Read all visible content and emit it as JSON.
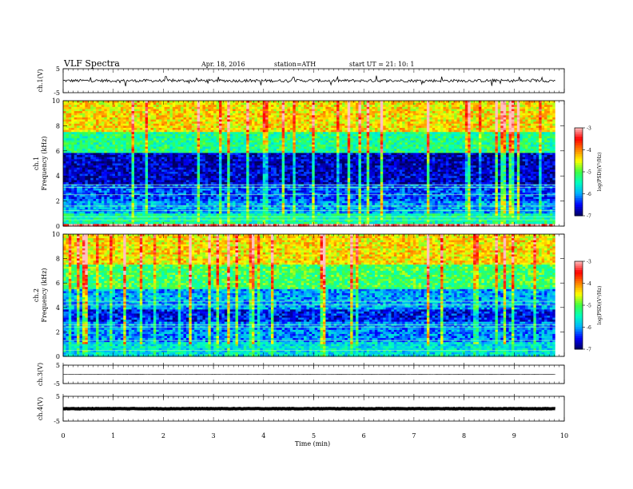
{
  "header": {
    "title": "VLF Spectra",
    "date": "Apr. 18, 2016",
    "station": "station=ATH",
    "start_time": "start  UT  =   21: 10: 1"
  },
  "chart_data": [
    {
      "type": "line",
      "id": "ch1",
      "ylabel": "ch.1(V)",
      "ylim": [
        -5,
        5
      ],
      "ytick_labels": [
        "5",
        "-5"
      ],
      "xlim": [
        0,
        10
      ],
      "baseline": 0,
      "noise_range": [
        -0.6,
        0.6
      ],
      "spikes": [
        {
          "t": 0.55,
          "v": 2.0
        },
        {
          "t": 1.25,
          "v": -2.3
        },
        {
          "t": 2.05,
          "v": 1.8
        },
        {
          "t": 3.1,
          "v": 1.6
        },
        {
          "t": 3.95,
          "v": -1.9
        },
        {
          "t": 4.6,
          "v": 1.5
        },
        {
          "t": 5.35,
          "v": -1.7
        },
        {
          "t": 6.25,
          "v": 2.1
        },
        {
          "t": 7.55,
          "v": 1.7
        },
        {
          "t": 8.55,
          "v": -2.2
        },
        {
          "t": 9.1,
          "v": 1.6
        },
        {
          "t": 9.55,
          "v": 1.4
        }
      ],
      "color": "#000000"
    },
    {
      "type": "heatmap",
      "id": "ch1-spectrogram",
      "ylabel": "ch.1\nFrequency  (kHz)",
      "ylim": [
        0,
        10
      ],
      "ytick_labels": [
        "10",
        "8",
        "6",
        "4",
        "2",
        "0"
      ],
      "xlim": [
        0,
        10
      ],
      "colorbar": {
        "label": "log(PSD)(V²/Hz)",
        "range": [
          -7,
          -3
        ],
        "tick_labels": [
          "-3",
          "-4",
          "-5",
          "-6",
          "-7"
        ],
        "colors": [
          "#000060",
          "#0000ff",
          "#00b0ff",
          "#00ffc0",
          "#40ff40",
          "#ffff00",
          "#ff8000",
          "#ff0000",
          "#ffc0c0"
        ]
      },
      "bands": [
        {
          "f0": 0.0,
          "f1": 0.25,
          "level": -3.2
        },
        {
          "f0": 0.25,
          "f1": 1.0,
          "level": -5.4
        },
        {
          "f0": 1.0,
          "f1": 2.0,
          "level": -6.0
        },
        {
          "f0": 2.0,
          "f1": 3.4,
          "level": -6.3
        },
        {
          "f0": 3.4,
          "f1": 5.8,
          "level": -6.7
        },
        {
          "f0": 5.8,
          "f1": 7.5,
          "level": -5.3
        },
        {
          "f0": 7.5,
          "f1": 10.0,
          "level": -4.4
        }
      ],
      "lines_khz": [
        0.5,
        0.75,
        1.25,
        1.6,
        2.5,
        3.1,
        3.3
      ]
    },
    {
      "type": "heatmap",
      "id": "ch2-spectrogram",
      "ylabel": "ch.2\nFrequency  (kHz)",
      "ylim": [
        0,
        10
      ],
      "ytick_labels": [
        "10",
        "8",
        "6",
        "4",
        "2",
        "0"
      ],
      "xlim": [
        0,
        10
      ],
      "colorbar": {
        "label": "log(PSD)(V²/Hz)",
        "range": [
          -7,
          -3
        ],
        "tick_labels": [
          "-3",
          "-4",
          "-5",
          "-6",
          "-7"
        ],
        "colors": [
          "#000060",
          "#0000ff",
          "#00b0ff",
          "#00ffc0",
          "#40ff40",
          "#ffff00",
          "#ff8000",
          "#ff0000",
          "#ffc0c0"
        ]
      },
      "bands": [
        {
          "f0": 0.0,
          "f1": 1.2,
          "level": -5.7
        },
        {
          "f0": 1.2,
          "f1": 2.8,
          "level": -6.1
        },
        {
          "f0": 2.8,
          "f1": 3.8,
          "level": -6.5
        },
        {
          "f0": 3.8,
          "f1": 5.5,
          "level": -6.0
        },
        {
          "f0": 5.5,
          "f1": 7.5,
          "level": -5.1
        },
        {
          "f0": 7.5,
          "f1": 10.0,
          "level": -4.4
        }
      ],
      "lines_khz": [
        0.5,
        1.3,
        2.4,
        2.6,
        4.2,
        4.5
      ]
    },
    {
      "type": "line",
      "id": "ch3",
      "ylabel": "ch.3(V)",
      "ylim": [
        -5,
        5
      ],
      "ytick_labels": [
        "5",
        "-5"
      ],
      "xlim": [
        0,
        10
      ],
      "baseline": 0,
      "noise_range": [
        -0.05,
        0.05
      ],
      "spikes": [],
      "color": "#000000"
    },
    {
      "type": "line",
      "id": "ch4",
      "ylabel": "ch.4(V)",
      "ylim": [
        -5,
        5
      ],
      "ytick_labels": [
        "5",
        "-5"
      ],
      "xlim": [
        0,
        10
      ],
      "baseline": 0,
      "noise_range": [
        -0.1,
        0.1
      ],
      "spikes": [],
      "thick": true,
      "color": "#000000"
    }
  ],
  "x_axis": {
    "label": "Time  (min)",
    "ticks": [
      0,
      1,
      2,
      3,
      4,
      5,
      6,
      7,
      8,
      9,
      10
    ],
    "data_end": 9.82
  }
}
